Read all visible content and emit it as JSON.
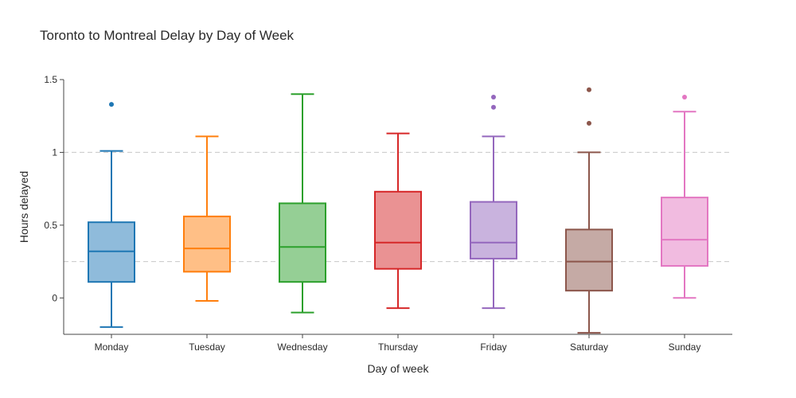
{
  "chart_data": {
    "type": "box",
    "title": "Toronto to Montreal Delay by Day of Week",
    "xlabel": "Day of week",
    "ylabel": "Hours delayed",
    "ylim": [
      -0.25,
      1.5
    ],
    "yticks": [
      {
        "value": 0,
        "label": "0"
      },
      {
        "value": 0.5,
        "label": "0.5"
      },
      {
        "value": 1,
        "label": "1"
      },
      {
        "value": 1.5,
        "label": "1.5"
      }
    ],
    "gridlines": [
      0.25,
      1.0
    ],
    "grid": "dashed horizontal",
    "categories": [
      "Monday",
      "Tuesday",
      "Wednesday",
      "Thursday",
      "Friday",
      "Saturday",
      "Sunday"
    ],
    "series": [
      {
        "color": "#1f77b4",
        "fill": "#8fbbdb",
        "min": -0.2,
        "q1": 0.11,
        "median": 0.32,
        "q3": 0.52,
        "max": 1.01,
        "outliers": [
          1.33
        ]
      },
      {
        "color": "#ff7f0e",
        "fill": "#ffbf86",
        "min": -0.02,
        "q1": 0.18,
        "median": 0.34,
        "q3": 0.56,
        "max": 1.11,
        "outliers": []
      },
      {
        "color": "#2ca02c",
        "fill": "#95cf95",
        "min": -0.1,
        "q1": 0.11,
        "median": 0.35,
        "q3": 0.65,
        "max": 1.4,
        "outliers": []
      },
      {
        "color": "#d62728",
        "fill": "#ea9293",
        "min": -0.07,
        "q1": 0.2,
        "median": 0.38,
        "q3": 0.73,
        "max": 1.13,
        "outliers": []
      },
      {
        "color": "#9467bd",
        "fill": "#c9b3de",
        "min": -0.07,
        "q1": 0.27,
        "median": 0.38,
        "q3": 0.66,
        "max": 1.11,
        "outliers": [
          1.38,
          1.31
        ]
      },
      {
        "color": "#8c564b",
        "fill": "#c5aaa5",
        "min": -0.24,
        "q1": 0.05,
        "median": 0.25,
        "q3": 0.47,
        "max": 1.0,
        "outliers": [
          1.43,
          1.2
        ]
      },
      {
        "color": "#e377c2",
        "fill": "#f1bbe0",
        "min": 0.0,
        "q1": 0.22,
        "median": 0.4,
        "q3": 0.69,
        "max": 1.28,
        "outliers": [
          1.38
        ]
      }
    ]
  }
}
